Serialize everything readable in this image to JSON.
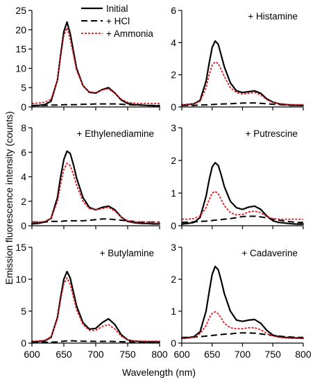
{
  "figure": {
    "ylabel": "Emission fluorescence intensity (counts)",
    "xlabel": "Wavelength (nm)"
  },
  "legend": {
    "items": [
      {
        "label": "Initial",
        "style": "solid",
        "color": "#000000"
      },
      {
        "label": "+ HCl",
        "style": "dashed",
        "color": "#000000"
      },
      {
        "label": "+ Ammonia",
        "style": "dotted",
        "color": "#e8141b"
      }
    ]
  },
  "chart_data": [
    {
      "type": "line",
      "title": "",
      "xlim": [
        600,
        800
      ],
      "ylim": [
        0,
        25
      ],
      "xticks": [
        600,
        650,
        700,
        750,
        800
      ],
      "yticks": [
        0,
        5,
        10,
        15,
        20,
        25
      ],
      "x": [
        600,
        610,
        620,
        630,
        640,
        645,
        650,
        655,
        660,
        665,
        670,
        680,
        690,
        700,
        710,
        720,
        730,
        740,
        750,
        760,
        770,
        780,
        790,
        800
      ],
      "series": [
        {
          "name": "Initial",
          "style": "solid",
          "color": "#000000",
          "values": [
            0.3,
            0.4,
            0.6,
            1.5,
            7.0,
            13.5,
            19.5,
            22.0,
            19.0,
            14.5,
            10.0,
            5.5,
            3.8,
            3.6,
            4.5,
            5.0,
            3.6,
            1.8,
            0.9,
            0.6,
            0.5,
            0.4,
            0.3,
            0.3
          ]
        },
        {
          "name": "+ HCl",
          "style": "dashed",
          "color": "#000000",
          "values": [
            0.4,
            0.4,
            0.4,
            0.5,
            0.5,
            0.5,
            0.6,
            0.6,
            0.6,
            0.6,
            0.6,
            0.7,
            0.7,
            0.8,
            0.8,
            0.8,
            0.8,
            0.7,
            0.6,
            0.5,
            0.5,
            0.4,
            0.4,
            0.4
          ]
        },
        {
          "name": "+ Ammonia",
          "style": "dotted",
          "color": "#e8141b",
          "values": [
            0.9,
            1.0,
            1.2,
            2.0,
            7.0,
            13.0,
            18.5,
            20.5,
            17.5,
            13.5,
            9.5,
            5.5,
            3.9,
            3.7,
            4.4,
            4.7,
            3.5,
            2.0,
            1.2,
            1.0,
            0.9,
            0.9,
            0.9,
            0.9
          ]
        }
      ]
    },
    {
      "type": "line",
      "title": "+ Histamine",
      "xlim": [
        600,
        800
      ],
      "ylim": [
        0,
        6
      ],
      "xticks": [
        600,
        650,
        700,
        750,
        800
      ],
      "yticks": [
        0,
        2,
        4,
        6
      ],
      "x": [
        600,
        610,
        620,
        630,
        640,
        645,
        650,
        655,
        660,
        665,
        670,
        680,
        690,
        700,
        710,
        720,
        730,
        740,
        750,
        760,
        770,
        780,
        790,
        800
      ],
      "series": [
        {
          "name": "Initial",
          "style": "solid",
          "color": "#000000",
          "values": [
            0.1,
            0.15,
            0.2,
            0.4,
            1.6,
            2.7,
            3.7,
            4.1,
            3.9,
            3.2,
            2.5,
            1.5,
            1.0,
            0.9,
            0.95,
            1.0,
            0.85,
            0.5,
            0.3,
            0.2,
            0.15,
            0.12,
            0.1,
            0.1
          ]
        },
        {
          "name": "+ HCl",
          "style": "dashed",
          "color": "#000000",
          "values": [
            0.1,
            0.1,
            0.1,
            0.12,
            0.13,
            0.14,
            0.15,
            0.16,
            0.17,
            0.18,
            0.19,
            0.2,
            0.22,
            0.24,
            0.25,
            0.25,
            0.23,
            0.2,
            0.17,
            0.15,
            0.12,
            0.1,
            0.1,
            0.1
          ]
        },
        {
          "name": "+ Ammonia",
          "style": "dotted",
          "color": "#e8141b",
          "values": [
            0.15,
            0.17,
            0.2,
            0.35,
            1.2,
            2.0,
            2.6,
            2.8,
            2.7,
            2.3,
            1.9,
            1.2,
            0.9,
            0.8,
            0.85,
            0.9,
            0.75,
            0.45,
            0.28,
            0.2,
            0.17,
            0.15,
            0.15,
            0.15
          ]
        }
      ]
    },
    {
      "type": "line",
      "title": "+ Ethylenediamine",
      "xlim": [
        600,
        800
      ],
      "ylim": [
        0,
        8
      ],
      "xticks": [
        600,
        650,
        700,
        750,
        800
      ],
      "yticks": [
        0,
        2,
        4,
        6,
        8
      ],
      "x": [
        600,
        610,
        620,
        630,
        640,
        645,
        650,
        655,
        660,
        665,
        670,
        680,
        690,
        700,
        710,
        720,
        730,
        740,
        750,
        760,
        770,
        780,
        790,
        800
      ],
      "series": [
        {
          "name": "Initial",
          "style": "solid",
          "color": "#000000",
          "values": [
            0.15,
            0.2,
            0.3,
            0.6,
            2.3,
            4.0,
            5.4,
            6.1,
            5.9,
            5.0,
            3.9,
            2.3,
            1.5,
            1.3,
            1.5,
            1.6,
            1.3,
            0.7,
            0.35,
            0.25,
            0.2,
            0.18,
            0.15,
            0.15
          ]
        },
        {
          "name": "+ HCl",
          "style": "dashed",
          "color": "#000000",
          "values": [
            0.3,
            0.3,
            0.3,
            0.35,
            0.35,
            0.35,
            0.38,
            0.4,
            0.4,
            0.4,
            0.4,
            0.4,
            0.45,
            0.5,
            0.55,
            0.55,
            0.5,
            0.45,
            0.4,
            0.35,
            0.3,
            0.3,
            0.3,
            0.3
          ]
        },
        {
          "name": "+ Ammonia",
          "style": "dotted",
          "color": "#e8141b",
          "values": [
            0.3,
            0.3,
            0.35,
            0.6,
            2.0,
            3.4,
            4.6,
            5.1,
            4.9,
            4.2,
            3.3,
            2.0,
            1.4,
            1.3,
            1.4,
            1.5,
            1.2,
            0.7,
            0.4,
            0.3,
            0.3,
            0.3,
            0.3,
            0.3
          ]
        }
      ]
    },
    {
      "type": "line",
      "title": "+ Putrescine",
      "xlim": [
        600,
        800
      ],
      "ylim": [
        0,
        3
      ],
      "xticks": [
        600,
        650,
        700,
        750,
        800
      ],
      "yticks": [
        0,
        1,
        2,
        3
      ],
      "x": [
        600,
        610,
        620,
        630,
        640,
        645,
        650,
        655,
        660,
        665,
        670,
        680,
        690,
        700,
        710,
        720,
        730,
        740,
        750,
        760,
        770,
        780,
        790,
        800
      ],
      "series": [
        {
          "name": "Initial",
          "style": "solid",
          "color": "#000000",
          "values": [
            0.05,
            0.07,
            0.1,
            0.25,
            0.9,
            1.4,
            1.8,
            1.93,
            1.85,
            1.55,
            1.2,
            0.75,
            0.55,
            0.5,
            0.57,
            0.6,
            0.5,
            0.3,
            0.15,
            0.1,
            0.08,
            0.06,
            0.05,
            0.05
          ]
        },
        {
          "name": "+ HCl",
          "style": "dashed",
          "color": "#000000",
          "values": [
            0.1,
            0.11,
            0.12,
            0.13,
            0.14,
            0.15,
            0.16,
            0.17,
            0.18,
            0.19,
            0.2,
            0.22,
            0.25,
            0.28,
            0.29,
            0.29,
            0.27,
            0.24,
            0.2,
            0.17,
            0.14,
            0.12,
            0.1,
            0.1
          ]
        },
        {
          "name": "+ Ammonia",
          "style": "dotted",
          "color": "#e8141b",
          "values": [
            0.2,
            0.2,
            0.22,
            0.3,
            0.55,
            0.8,
            1.0,
            1.05,
            0.98,
            0.8,
            0.62,
            0.4,
            0.33,
            0.35,
            0.42,
            0.45,
            0.4,
            0.28,
            0.22,
            0.2,
            0.2,
            0.2,
            0.2,
            0.2
          ]
        }
      ]
    },
    {
      "type": "line",
      "title": "+ Butylamine",
      "xlim": [
        600,
        800
      ],
      "ylim": [
        0,
        15
      ],
      "xticks": [
        600,
        650,
        700,
        750,
        800
      ],
      "yticks": [
        0,
        5,
        10,
        15
      ],
      "x": [
        600,
        610,
        620,
        630,
        640,
        645,
        650,
        655,
        660,
        665,
        670,
        680,
        690,
        700,
        710,
        720,
        730,
        740,
        750,
        760,
        770,
        780,
        790,
        800
      ],
      "series": [
        {
          "name": "Initial",
          "style": "solid",
          "color": "#000000",
          "values": [
            0.2,
            0.25,
            0.35,
            0.9,
            4.0,
            7.2,
            10.0,
            11.2,
            10.2,
            8.0,
            5.8,
            3.2,
            2.2,
            2.3,
            3.2,
            3.8,
            2.9,
            1.3,
            0.5,
            0.3,
            0.25,
            0.2,
            0.2,
            0.2
          ]
        },
        {
          "name": "+ HCl",
          "style": "dashed",
          "color": "#000000",
          "values": [
            0.1,
            0.1,
            0.12,
            0.15,
            0.2,
            0.25,
            0.3,
            0.35,
            0.35,
            0.35,
            0.32,
            0.3,
            0.28,
            0.27,
            0.27,
            0.27,
            0.25,
            0.22,
            0.2,
            0.15,
            0.12,
            0.1,
            0.1,
            0.1
          ]
        },
        {
          "name": "+ Ammonia",
          "style": "dotted",
          "color": "#e8141b",
          "values": [
            0.3,
            0.35,
            0.45,
            1.0,
            3.8,
            6.8,
            9.3,
            10.2,
            9.2,
            7.2,
            5.2,
            2.9,
            2.0,
            2.0,
            2.6,
            2.9,
            2.2,
            1.1,
            0.5,
            0.35,
            0.3,
            0.3,
            0.3,
            0.3
          ]
        }
      ]
    },
    {
      "type": "line",
      "title": "+ Cadaverine",
      "xlim": [
        600,
        800
      ],
      "ylim": [
        0,
        3
      ],
      "xticks": [
        600,
        650,
        700,
        750,
        800
      ],
      "yticks": [
        0,
        1,
        2,
        3
      ],
      "x": [
        600,
        610,
        620,
        630,
        640,
        645,
        650,
        655,
        660,
        665,
        670,
        680,
        690,
        700,
        710,
        720,
        730,
        740,
        750,
        760,
        770,
        780,
        790,
        800
      ],
      "series": [
        {
          "name": "Initial",
          "style": "solid",
          "color": "#000000",
          "values": [
            0.15,
            0.17,
            0.2,
            0.35,
            1.0,
            1.6,
            2.15,
            2.4,
            2.3,
            1.95,
            1.55,
            1.0,
            0.72,
            0.68,
            0.72,
            0.74,
            0.62,
            0.4,
            0.25,
            0.2,
            0.18,
            0.17,
            0.16,
            0.15
          ]
        },
        {
          "name": "+ HCl",
          "style": "dashed",
          "color": "#000000",
          "values": [
            0.18,
            0.18,
            0.19,
            0.2,
            0.22,
            0.23,
            0.24,
            0.25,
            0.26,
            0.27,
            0.28,
            0.29,
            0.31,
            0.32,
            0.32,
            0.31,
            0.29,
            0.26,
            0.24,
            0.22,
            0.2,
            0.19,
            0.18,
            0.18
          ]
        },
        {
          "name": "+ Ammonia",
          "style": "dotted",
          "color": "#e8141b",
          "values": [
            0.15,
            0.15,
            0.18,
            0.3,
            0.55,
            0.78,
            0.93,
            0.98,
            0.92,
            0.78,
            0.62,
            0.48,
            0.45,
            0.45,
            0.48,
            0.48,
            0.42,
            0.3,
            0.22,
            0.18,
            0.16,
            0.15,
            0.15,
            0.15
          ]
        }
      ]
    }
  ]
}
